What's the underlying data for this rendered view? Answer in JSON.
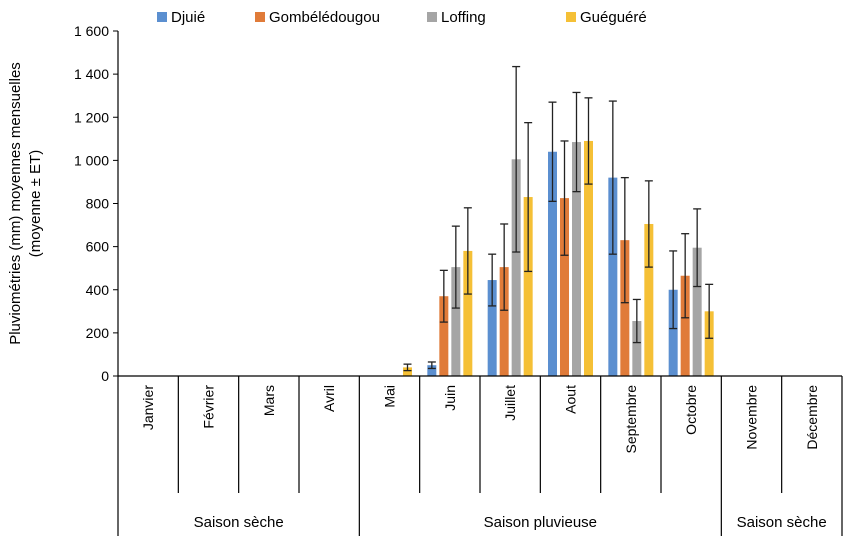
{
  "chart_data": {
    "type": "bar",
    "ylabel": "Pluviométries (mm) moyennes mensuelles (moyenne ± ET)",
    "ylabel_lines": [
      "Pluviométries (mm) moyennes mensuelles",
      "(moyenne ± ET)"
    ],
    "ylim": [
      0,
      1600
    ],
    "y_ticks": [
      0,
      200,
      400,
      600,
      800,
      1000,
      1200,
      1400,
      1600
    ],
    "y_tick_labels": [
      "0",
      "200",
      "400",
      "600",
      "800",
      "1 000",
      "1 200",
      "1 400",
      "1 600"
    ],
    "grid": false,
    "legend_position": "top",
    "categories": [
      "Janvier",
      "Février",
      "Mars",
      "Avril",
      "Mai",
      "Juin",
      "Juillet",
      "Aout",
      "Septembre",
      "Octobre",
      "Novembre",
      "Décembre"
    ],
    "seasons": [
      {
        "label": "Saison sèche",
        "months": 4
      },
      {
        "label": "Saison pluvieuse",
        "months": 6
      },
      {
        "label": "Saison sèche",
        "months": 2
      }
    ],
    "series": [
      {
        "name": "Djuié",
        "color": "#5b8fd0",
        "values": [
          null,
          null,
          null,
          null,
          null,
          50,
          445,
          1040,
          920,
          400,
          null,
          null
        ],
        "errors": [
          null,
          null,
          null,
          null,
          null,
          15,
          120,
          230,
          355,
          180,
          null,
          null
        ]
      },
      {
        "name": "Gombélédougou",
        "color": "#e07b39",
        "values": [
          null,
          null,
          null,
          null,
          null,
          370,
          505,
          825,
          630,
          465,
          null,
          null
        ],
        "errors": [
          null,
          null,
          null,
          null,
          null,
          120,
          200,
          265,
          290,
          195,
          null,
          null
        ]
      },
      {
        "name": "Loffing",
        "color": "#a5a5a5",
        "values": [
          null,
          null,
          null,
          null,
          null,
          505,
          1005,
          1085,
          255,
          595,
          null,
          null
        ],
        "errors": [
          null,
          null,
          null,
          null,
          null,
          190,
          430,
          230,
          100,
          180,
          null,
          null
        ]
      },
      {
        "name": "Guéguéré",
        "color": "#f5c036",
        "values": [
          null,
          null,
          null,
          null,
          40,
          580,
          830,
          1090,
          705,
          300,
          null,
          null
        ],
        "errors": [
          null,
          null,
          null,
          null,
          15,
          200,
          345,
          200,
          200,
          125,
          null,
          null
        ]
      }
    ]
  }
}
